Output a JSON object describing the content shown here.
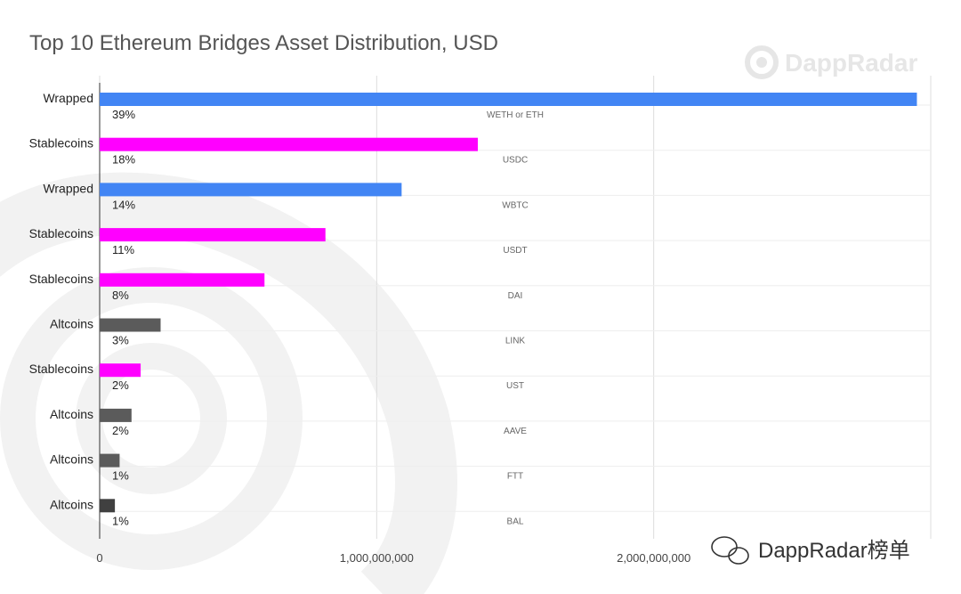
{
  "watermark": {
    "brand": "DappRadar",
    "channel": "DappRadar榜单"
  },
  "colors": {
    "Wrapped": "#4285f4",
    "Stablecoins": "#ff00ff",
    "Altcoins": "#5b5b5b",
    "Altcoins_dark": "#404040"
  },
  "chart_data": {
    "type": "bar",
    "orientation": "horizontal",
    "title": "Top 10 Ethereum Bridges Asset Distribution, USD",
    "xlabel": "",
    "ylabel": "",
    "xlim": [
      0,
      3000000000
    ],
    "xticks": [
      0,
      1000000000,
      2000000000
    ],
    "xtick_labels": [
      "0",
      "1,000,000,000",
      "2,000,000,000"
    ],
    "grid": true,
    "legend": "none",
    "bars": [
      {
        "category": "Wrapped",
        "asset": "WETH or ETH",
        "percent": "39%",
        "value": 2950000000
      },
      {
        "category": "Stablecoins",
        "asset": "USDC",
        "percent": "18%",
        "value": 1365000000
      },
      {
        "category": "Wrapped",
        "asset": "WBTC",
        "percent": "14%",
        "value": 1090000000
      },
      {
        "category": "Stablecoins",
        "asset": "USDT",
        "percent": "11%",
        "value": 815000000
      },
      {
        "category": "Stablecoins",
        "asset": "DAI",
        "percent": "8%",
        "value": 595000000
      },
      {
        "category": "Altcoins",
        "asset": "LINK",
        "percent": "3%",
        "value": 220000000
      },
      {
        "category": "Stablecoins",
        "asset": "UST",
        "percent": "2%",
        "value": 148000000
      },
      {
        "category": "Altcoins",
        "asset": "AAVE",
        "percent": "2%",
        "value": 115000000
      },
      {
        "category": "Altcoins",
        "asset": "FTT",
        "percent": "1%",
        "value": 72000000
      },
      {
        "category": "Altcoins",
        "asset": "BAL",
        "percent": "1%",
        "value": 55000000
      }
    ]
  }
}
